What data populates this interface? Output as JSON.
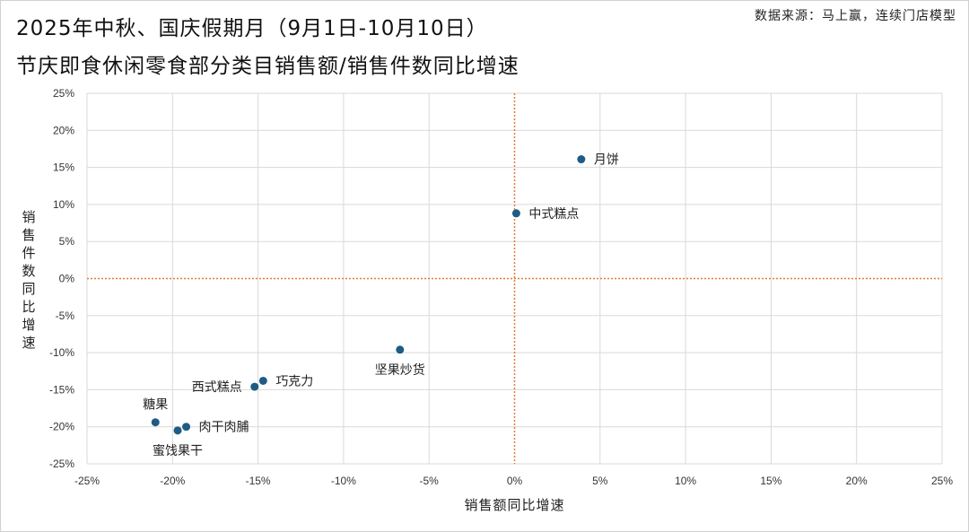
{
  "title_line1": "2025年中秋、国庆假期月（9月1日-10月10日）",
  "title_line2": "节庆即食休闲零食部分类目销售额/销售件数同比增速",
  "source": "数据来源：马上赢，连续门店模型",
  "chart_data": {
    "type": "scatter",
    "title": "2025年中秋、国庆假期月（9月1日-10月10日）节庆即食休闲零食部分类目销售额/销售件数同比增速",
    "xlabel": "销售额同比增速",
    "ylabel": "销售件数同比增速",
    "xlim": [
      -25,
      25
    ],
    "ylim": [
      -25,
      25
    ],
    "xticks": [
      -25,
      -20,
      -15,
      -10,
      -5,
      0,
      5,
      10,
      15,
      20,
      25
    ],
    "yticks": [
      -25,
      -20,
      -15,
      -10,
      -5,
      0,
      5,
      10,
      15,
      20,
      25
    ],
    "tick_format": "percent",
    "grid": true,
    "point_color": "#1f5c85",
    "reference_line_color": "#e07b39",
    "points": [
      {
        "label": "月饼",
        "x": 3.9,
        "y": 16.1
      },
      {
        "label": "中式糕点",
        "x": 0.1,
        "y": 8.8
      },
      {
        "label": "坚果炒货",
        "x": -6.7,
        "y": -9.6
      },
      {
        "label": "巧克力",
        "x": -14.7,
        "y": -13.8
      },
      {
        "label": "西式糕点",
        "x": -15.2,
        "y": -14.6
      },
      {
        "label": "糖果",
        "x": -21.0,
        "y": -19.4
      },
      {
        "label": "肉干肉脯",
        "x": -19.2,
        "y": -20.0
      },
      {
        "label": "蜜饯果干",
        "x": -19.7,
        "y": -20.5
      }
    ]
  }
}
